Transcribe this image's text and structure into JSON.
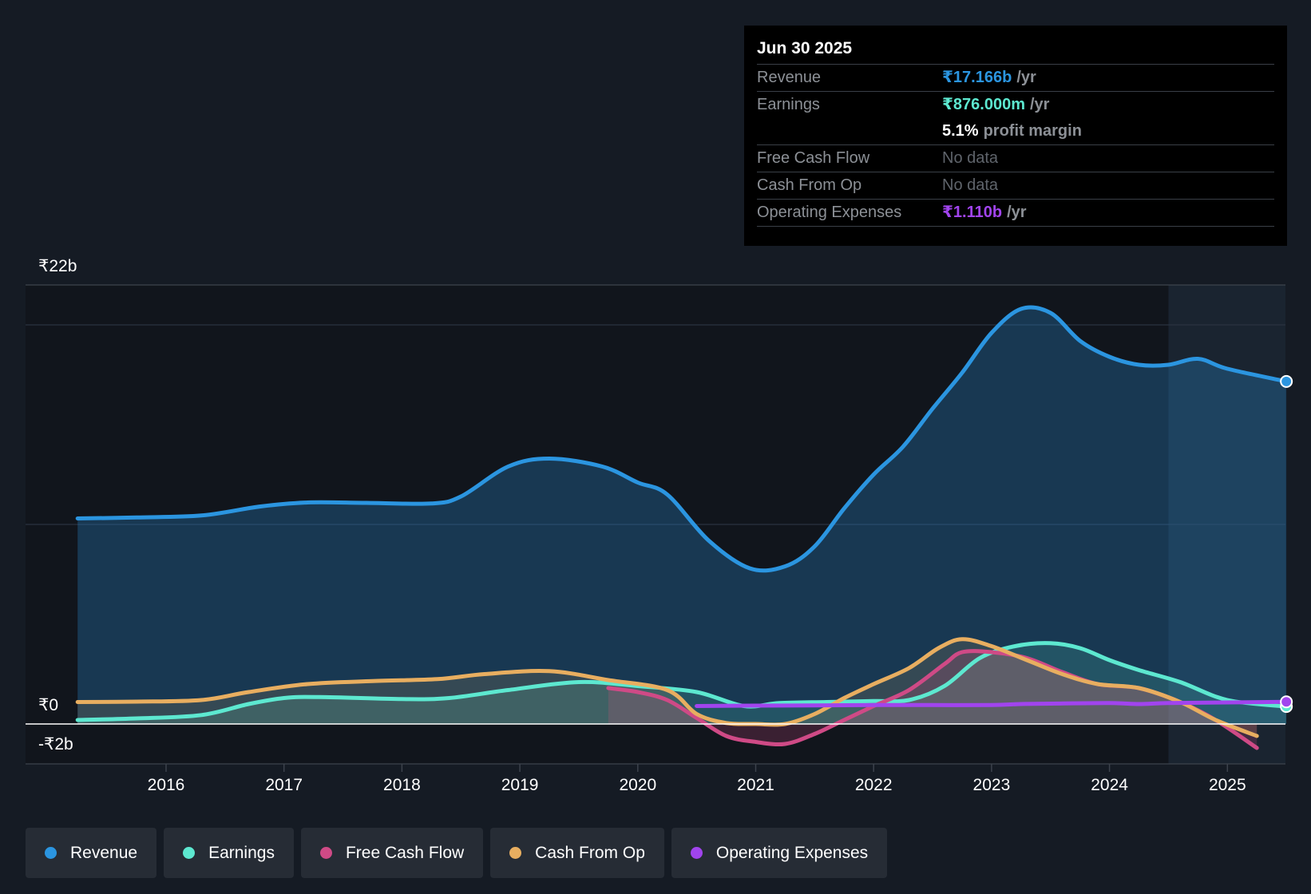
{
  "chart_data": {
    "type": "line",
    "currency": "₹",
    "y_labels": [
      "₹22b",
      "₹0",
      "-₹2b"
    ],
    "ylim": [
      -2,
      22
    ],
    "x_ticks": [
      "2016",
      "2017",
      "2018",
      "2019",
      "2020",
      "2021",
      "2022",
      "2023",
      "2024",
      "2025"
    ],
    "grid": true,
    "forecast_start": 2024.5,
    "legend_position": "bottom-left",
    "series": [
      {
        "name": "Revenue",
        "color": "#2b95e0",
        "fill": true,
        "points": [
          [
            2015.25,
            10.3
          ],
          [
            2015.75,
            10.35
          ],
          [
            2016.3,
            10.45
          ],
          [
            2016.8,
            10.9
          ],
          [
            2017.2,
            11.1
          ],
          [
            2017.7,
            11.08
          ],
          [
            2018.25,
            11.05
          ],
          [
            2018.5,
            11.4
          ],
          [
            2018.9,
            12.9
          ],
          [
            2019.25,
            13.3
          ],
          [
            2019.7,
            12.9
          ],
          [
            2020.0,
            12.1
          ],
          [
            2020.25,
            11.5
          ],
          [
            2020.6,
            9.2
          ],
          [
            2020.95,
            7.8
          ],
          [
            2021.25,
            7.9
          ],
          [
            2021.5,
            8.9
          ],
          [
            2021.75,
            10.8
          ],
          [
            2022.0,
            12.5
          ],
          [
            2022.25,
            13.9
          ],
          [
            2022.5,
            15.8
          ],
          [
            2022.75,
            17.6
          ],
          [
            2023.0,
            19.6
          ],
          [
            2023.25,
            20.8
          ],
          [
            2023.5,
            20.6
          ],
          [
            2023.75,
            19.2
          ],
          [
            2024.0,
            18.4
          ],
          [
            2024.25,
            18.0
          ],
          [
            2024.5,
            18.0
          ],
          [
            2024.75,
            18.3
          ],
          [
            2025.0,
            17.8
          ],
          [
            2025.5,
            17.166
          ]
        ]
      },
      {
        "name": "Earnings",
        "color": "#5de8d0",
        "fill": true,
        "points": [
          [
            2015.25,
            0.2
          ],
          [
            2015.75,
            0.28
          ],
          [
            2016.3,
            0.45
          ],
          [
            2016.7,
            1.0
          ],
          [
            2017.0,
            1.3
          ],
          [
            2017.3,
            1.35
          ],
          [
            2018.0,
            1.25
          ],
          [
            2018.4,
            1.3
          ],
          [
            2018.9,
            1.7
          ],
          [
            2019.5,
            2.1
          ],
          [
            2020.0,
            1.9
          ],
          [
            2020.5,
            1.6
          ],
          [
            2020.9,
            0.9
          ],
          [
            2021.2,
            1.05
          ],
          [
            2021.6,
            1.1
          ],
          [
            2022.0,
            1.15
          ],
          [
            2022.3,
            1.2
          ],
          [
            2022.6,
            1.9
          ],
          [
            2022.9,
            3.3
          ],
          [
            2023.2,
            3.9
          ],
          [
            2023.5,
            4.05
          ],
          [
            2023.75,
            3.8
          ],
          [
            2024.0,
            3.2
          ],
          [
            2024.25,
            2.7
          ],
          [
            2024.6,
            2.1
          ],
          [
            2025.0,
            1.2
          ],
          [
            2025.5,
            0.876
          ]
        ]
      },
      {
        "name": "Free Cash Flow",
        "color": "#cf4a86",
        "fill": true,
        "points": [
          [
            2019.75,
            1.8
          ],
          [
            2020.0,
            1.6
          ],
          [
            2020.25,
            1.2
          ],
          [
            2020.5,
            0.3
          ],
          [
            2020.75,
            -0.6
          ],
          [
            2021.0,
            -0.9
          ],
          [
            2021.25,
            -1.0
          ],
          [
            2021.5,
            -0.5
          ],
          [
            2021.75,
            0.2
          ],
          [
            2022.0,
            0.9
          ],
          [
            2022.3,
            1.7
          ],
          [
            2022.6,
            3.0
          ],
          [
            2022.75,
            3.6
          ],
          [
            2023.0,
            3.6
          ],
          [
            2023.3,
            3.3
          ],
          [
            2023.6,
            2.6
          ],
          [
            2023.9,
            2.0
          ],
          [
            2024.25,
            1.8
          ],
          [
            2024.6,
            1.1
          ],
          [
            2024.9,
            0.2
          ],
          [
            2025.25,
            -1.2
          ]
        ]
      },
      {
        "name": "Cash From Op",
        "color": "#e8ae60",
        "fill": true,
        "points": [
          [
            2015.25,
            1.1
          ],
          [
            2015.75,
            1.12
          ],
          [
            2016.3,
            1.2
          ],
          [
            2016.7,
            1.6
          ],
          [
            2017.2,
            2.0
          ],
          [
            2017.75,
            2.15
          ],
          [
            2018.3,
            2.25
          ],
          [
            2018.7,
            2.5
          ],
          [
            2019.25,
            2.65
          ],
          [
            2019.75,
            2.2
          ],
          [
            2020.25,
            1.7
          ],
          [
            2020.5,
            0.5
          ],
          [
            2020.75,
            0.05
          ],
          [
            2021.0,
            0.0
          ],
          [
            2021.25,
            0.0
          ],
          [
            2021.5,
            0.5
          ],
          [
            2021.75,
            1.3
          ],
          [
            2022.0,
            2.0
          ],
          [
            2022.3,
            2.8
          ],
          [
            2022.55,
            3.8
          ],
          [
            2022.75,
            4.25
          ],
          [
            2023.0,
            3.9
          ],
          [
            2023.3,
            3.2
          ],
          [
            2023.6,
            2.5
          ],
          [
            2023.9,
            2.0
          ],
          [
            2024.25,
            1.8
          ],
          [
            2024.6,
            1.1
          ],
          [
            2024.9,
            0.2
          ],
          [
            2025.25,
            -0.6
          ]
        ]
      },
      {
        "name": "Operating Expenses",
        "color": "#a144ee",
        "fill": false,
        "points": [
          [
            2020.5,
            0.9
          ],
          [
            2021.0,
            0.92
          ],
          [
            2021.5,
            0.93
          ],
          [
            2022.0,
            0.95
          ],
          [
            2022.5,
            0.95
          ],
          [
            2023.0,
            0.95
          ],
          [
            2023.25,
            1.0
          ],
          [
            2023.5,
            1.02
          ],
          [
            2024.0,
            1.05
          ],
          [
            2024.25,
            1.0
          ],
          [
            2024.5,
            1.05
          ],
          [
            2025.0,
            1.08
          ],
          [
            2025.5,
            1.11
          ]
        ]
      }
    ]
  },
  "tooltip": {
    "date": "Jun 30 2025",
    "rows": [
      {
        "label": "Revenue",
        "value": "₹17.166b",
        "unit": "/yr",
        "color": "#2b95e0"
      },
      {
        "label": "Earnings",
        "value": "₹876.000m",
        "unit": "/yr",
        "color": "#5de8d0"
      },
      {
        "label": "",
        "value": "5.1%",
        "unit": "profit margin",
        "color": "#ffffff"
      },
      {
        "label": "Free Cash Flow",
        "value": "No data",
        "unit": "",
        "color": "#5f646b"
      },
      {
        "label": "Cash From Op",
        "value": "No data",
        "unit": "",
        "color": "#5f646b"
      },
      {
        "label": "Operating Expenses",
        "value": "₹1.110b",
        "unit": "/yr",
        "color": "#a144ee"
      }
    ]
  },
  "legend": [
    {
      "label": "Revenue",
      "color": "#2b95e0"
    },
    {
      "label": "Earnings",
      "color": "#5de8d0"
    },
    {
      "label": "Free Cash Flow",
      "color": "#cf4a86"
    },
    {
      "label": "Cash From Op",
      "color": "#e8ae60"
    },
    {
      "label": "Operating Expenses",
      "color": "#a144ee"
    }
  ]
}
